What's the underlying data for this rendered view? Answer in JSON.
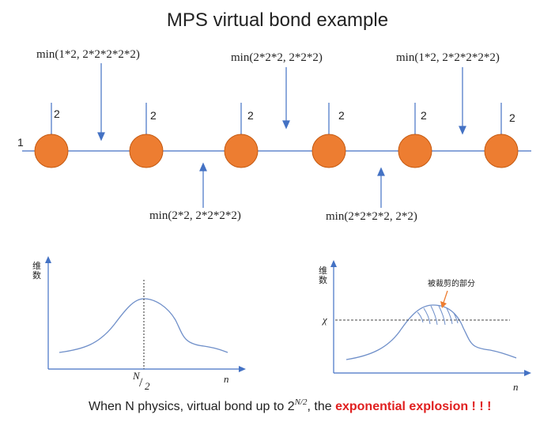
{
  "title": "MPS virtual bond example",
  "left_leg_label": "1",
  "physical_labels": [
    "2",
    "2",
    "2",
    "2",
    "2",
    "2"
  ],
  "bond_labels_top": [
    "min(1*2,  2*2*2*2*2)",
    "min(2*2*2,  2*2*2)",
    "min(1*2,  2*2*2*2*2)"
  ],
  "bond_labels_bottom": [
    "min(2*2,  2*2*2*2)",
    "min(2*2*2*2,  2*2)"
  ],
  "colors": {
    "node": "#ed7d31",
    "node_stroke": "#c55a11",
    "line": "#4472c4",
    "curve": "#6f8fc9",
    "arrow_note": "#ed7d31",
    "accent": "#e02020"
  },
  "plot_left": {
    "y_label": "维\n数",
    "x_label": "n",
    "mid_label_top": "N",
    "mid_label_bottom": "2"
  },
  "plot_right": {
    "y_label": "维\n数",
    "x_label": "n",
    "chi_label": "χ",
    "note": "被裁剪的部分"
  },
  "footer": {
    "prefix": "When N physics, virtual bond up to ",
    "base": "2",
    "exponent": "N/2",
    "middle": ", the ",
    "highlight": "exponential explosion ! ! !"
  }
}
